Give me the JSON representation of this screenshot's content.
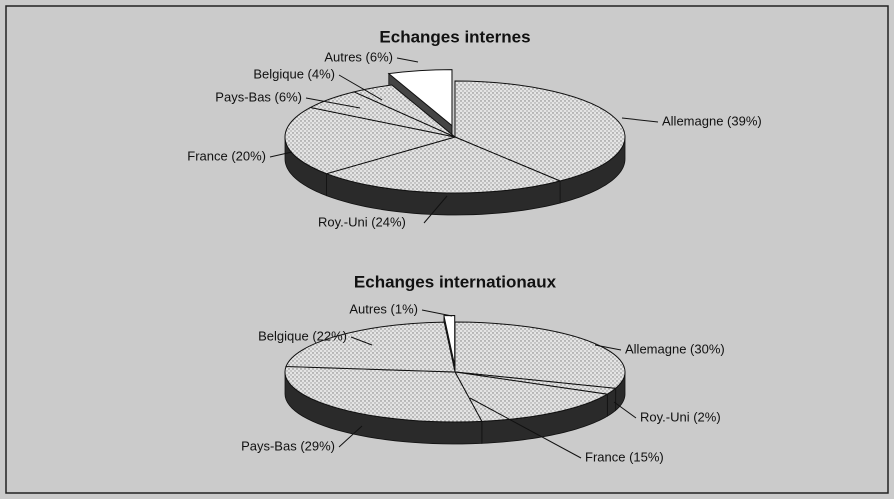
{
  "chart_data": [
    {
      "type": "pie",
      "title": "Echanges internes",
      "values": [
        39,
        24,
        20,
        6,
        4,
        6
      ],
      "value_labels": [
        "Allemagne (39%)",
        "Roy.-Uni (24%)",
        "France (20%)",
        "Pays-Bas (6%)",
        "Belgique (4%)",
        "Autres (6%)"
      ],
      "colors": [
        "#d9d9d9",
        "#d9d9d9",
        "#d9d9d9",
        "#d9d9d9",
        "#d9d9d9",
        "#ffffff"
      ]
    },
    {
      "type": "pie",
      "title": "Echanges internationaux",
      "values": [
        30,
        2,
        15,
        29,
        22,
        1
      ],
      "value_labels": [
        "Allemagne (30%)",
        "Roy.-Uni (2%)",
        "France (15%)",
        "Pays-Bas (29%)",
        "Belgique (22%)",
        "Autres (1%)"
      ],
      "colors": [
        "#d9d9d9",
        "#d9d9d9",
        "#d9d9d9",
        "#d9d9d9",
        "#d9d9d9",
        "#ffffff"
      ]
    }
  ]
}
